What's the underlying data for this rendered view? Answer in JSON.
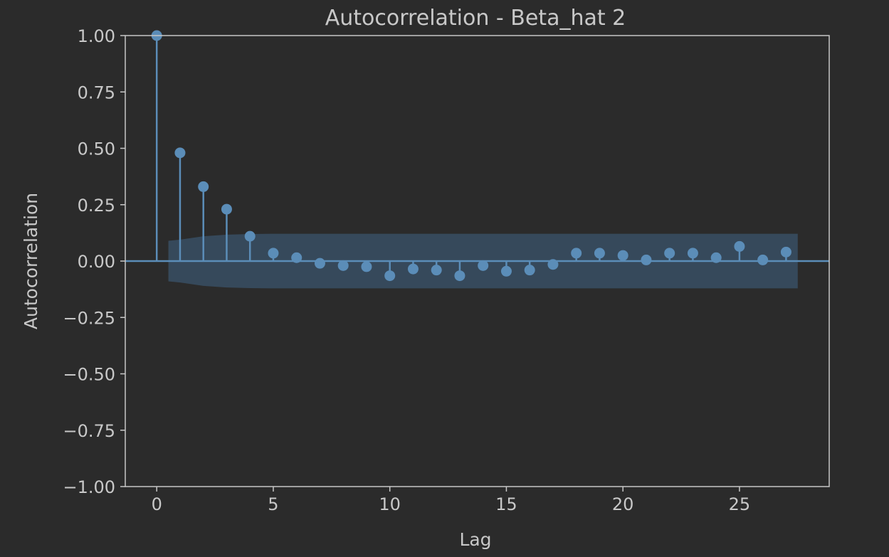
{
  "chart_data": {
    "type": "stem",
    "title": "Autocorrelation - Beta_hat 2",
    "xlabel": "Lag",
    "ylabel": "Autocorrelation",
    "xlim": [
      -1.35,
      28.85
    ],
    "ylim": [
      -1.0,
      1.0
    ],
    "xticks": [
      0,
      5,
      10,
      15,
      20,
      25
    ],
    "yticks": [
      1.0,
      0.75,
      0.5,
      0.25,
      0.0,
      -0.25,
      -0.5,
      -0.75,
      -1.0
    ],
    "ytick_labels": [
      "1.00",
      "0.75",
      "0.50",
      "0.25",
      "0.00",
      "−0.25",
      "−0.50",
      "−0.75",
      "−1.00"
    ],
    "lags": [
      0,
      1,
      2,
      3,
      4,
      5,
      6,
      7,
      8,
      9,
      10,
      11,
      12,
      13,
      14,
      15,
      16,
      17,
      18,
      19,
      20,
      21,
      22,
      23,
      24,
      25,
      26,
      27
    ],
    "values": [
      1.0,
      0.48,
      0.33,
      0.23,
      0.11,
      0.035,
      0.015,
      -0.01,
      -0.02,
      -0.025,
      -0.065,
      -0.035,
      -0.04,
      -0.065,
      -0.02,
      -0.045,
      -0.04,
      -0.015,
      0.035,
      0.035,
      0.025,
      0.005,
      0.035,
      0.035,
      0.015,
      0.065,
      0.005,
      0.04
    ],
    "confidence_band": {
      "x": [
        0.5,
        1,
        2,
        3,
        4,
        5,
        27.5
      ],
      "upper": [
        0.09,
        0.095,
        0.11,
        0.117,
        0.12,
        0.121,
        0.121
      ],
      "lower": [
        -0.09,
        -0.095,
        -0.11,
        -0.117,
        -0.12,
        -0.121,
        -0.121
      ]
    },
    "grid": false,
    "colors": {
      "background": "#2b2b2b",
      "stem": "#5b8db8",
      "band": "#36495b",
      "axes": "#c8c8c8",
      "text": "#c8c8c8"
    }
  }
}
